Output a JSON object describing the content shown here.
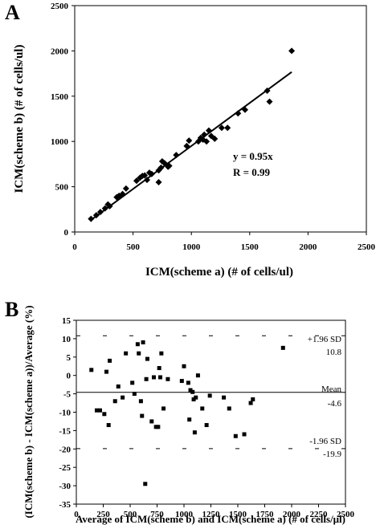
{
  "chart_data": [
    {
      "panel": "A",
      "type": "scatter",
      "xlabel": "ICM(scheme a) (# of cells/ul)",
      "ylabel": "ICM(scheme b) (# of cells/ul)",
      "xlim": [
        0,
        2500
      ],
      "ylim": [
        0,
        2500
      ],
      "xticks": [
        "0",
        "500",
        "1000",
        "1500",
        "2000",
        "2500"
      ],
      "yticks": [
        "0",
        "500",
        "1000",
        "1500",
        "2000",
        "2500"
      ],
      "marker": "diamond",
      "fit_line": {
        "slope": 0.95,
        "x_range": [
          130,
          1860
        ]
      },
      "annotations": [
        "y = 0.95x",
        "R = 0.99"
      ],
      "points": [
        [
          140,
          145
        ],
        [
          185,
          185
        ],
        [
          220,
          220
        ],
        [
          260,
          260
        ],
        [
          285,
          305
        ],
        [
          300,
          285
        ],
        [
          360,
          385
        ],
        [
          380,
          400
        ],
        [
          410,
          420
        ],
        [
          440,
          480
        ],
        [
          530,
          565
        ],
        [
          560,
          600
        ],
        [
          580,
          620
        ],
        [
          600,
          625
        ],
        [
          620,
          575
        ],
        [
          640,
          655
        ],
        [
          660,
          640
        ],
        [
          720,
          680
        ],
        [
          720,
          550
        ],
        [
          740,
          710
        ],
        [
          750,
          780
        ],
        [
          770,
          760
        ],
        [
          800,
          720
        ],
        [
          810,
          730
        ],
        [
          870,
          850
        ],
        [
          960,
          950
        ],
        [
          980,
          1010
        ],
        [
          1060,
          1000
        ],
        [
          1080,
          1040
        ],
        [
          1100,
          1020
        ],
        [
          1110,
          1075
        ],
        [
          1130,
          1000
        ],
        [
          1150,
          1120
        ],
        [
          1170,
          1060
        ],
        [
          1200,
          1030
        ],
        [
          1260,
          1150
        ],
        [
          1310,
          1150
        ],
        [
          1400,
          1310
        ],
        [
          1460,
          1350
        ],
        [
          1650,
          1560
        ],
        [
          1670,
          1440
        ],
        [
          1860,
          2000
        ]
      ]
    },
    {
      "panel": "B",
      "type": "scatter",
      "xlabel": "Average of ICM(scheme b) and ICM(scheme a) (# of cells/μl)",
      "ylabel": "(ICM(scheme b) - ICM(scheme a))/Average (%)",
      "xlim": [
        0,
        2500
      ],
      "ylim": [
        -35,
        15
      ],
      "xticks": [
        "0",
        "250",
        "500",
        "750",
        "1000",
        "1250",
        "1500",
        "1750",
        "2000",
        "2250",
        "2500"
      ],
      "yticks": [
        "15",
        "10",
        "5",
        "0",
        "-5",
        "-10",
        "-15",
        "-20",
        "-25",
        "-30",
        "-35"
      ],
      "marker": "square",
      "reference_lines": [
        {
          "name": "upper",
          "value": 10.8,
          "style": "dashed",
          "label": "+1.96 SD",
          "value_label": "10.8"
        },
        {
          "name": "mean",
          "value": -4.6,
          "style": "solid",
          "label": "Mean",
          "value_label": "-4.6"
        },
        {
          "name": "lower",
          "value": -19.9,
          "style": "dashed",
          "label": "-1.96 SD",
          "value_label": "-19.9"
        }
      ],
      "points": [
        [
          140,
          1.5
        ],
        [
          190,
          -9.5
        ],
        [
          220,
          -9.5
        ],
        [
          260,
          -10.5
        ],
        [
          280,
          1
        ],
        [
          300,
          -13.5
        ],
        [
          310,
          4
        ],
        [
          360,
          -7
        ],
        [
          390,
          -3
        ],
        [
          430,
          -6
        ],
        [
          460,
          6
        ],
        [
          520,
          -2
        ],
        [
          540,
          -5
        ],
        [
          570,
          8.5
        ],
        [
          580,
          6
        ],
        [
          600,
          -7
        ],
        [
          610,
          -11
        ],
        [
          620,
          9
        ],
        [
          640,
          -29.5
        ],
        [
          650,
          -1
        ],
        [
          660,
          4.5
        ],
        [
          700,
          -12.5
        ],
        [
          720,
          -0.5
        ],
        [
          740,
          -14
        ],
        [
          760,
          -14
        ],
        [
          770,
          2
        ],
        [
          780,
          -0.5
        ],
        [
          790,
          6
        ],
        [
          810,
          -9
        ],
        [
          850,
          -1
        ],
        [
          980,
          -1.5
        ],
        [
          1000,
          2.5
        ],
        [
          1040,
          -2
        ],
        [
          1050,
          -12
        ],
        [
          1060,
          -4
        ],
        [
          1080,
          -4.5
        ],
        [
          1090,
          -6.5
        ],
        [
          1100,
          -15.5
        ],
        [
          1110,
          -6
        ],
        [
          1130,
          0
        ],
        [
          1170,
          -9
        ],
        [
          1210,
          -13.5
        ],
        [
          1240,
          -5.5
        ],
        [
          1370,
          -6
        ],
        [
          1420,
          -9
        ],
        [
          1480,
          -16.5
        ],
        [
          1560,
          -16
        ],
        [
          1620,
          -7.5
        ],
        [
          1640,
          -6.5
        ],
        [
          1920,
          7.5
        ]
      ]
    }
  ]
}
